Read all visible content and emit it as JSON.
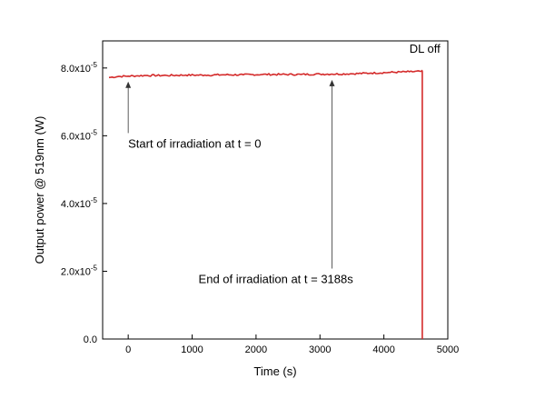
{
  "chart_data": {
    "type": "line",
    "title": "",
    "xlabel": "Time (s)",
    "ylabel": "Output power @ 519nm (W)",
    "xlim": [
      -400,
      5000
    ],
    "ylim": [
      0.0,
      8.8e-05
    ],
    "x_ticks": [
      {
        "value": 0,
        "label": "0"
      },
      {
        "value": 1000,
        "label": "1000"
      },
      {
        "value": 2000,
        "label": "2000"
      },
      {
        "value": 3000,
        "label": "3000"
      },
      {
        "value": 4000,
        "label": "4000"
      },
      {
        "value": 5000,
        "label": "5000"
      }
    ],
    "y_ticks": [
      {
        "value": 0.0,
        "label": "0.0",
        "exp": ""
      },
      {
        "value": 2e-05,
        "label": "2.0x10",
        "exp": "-5"
      },
      {
        "value": 4e-05,
        "label": "4.0x10",
        "exp": "-5"
      },
      {
        "value": 6e-05,
        "label": "6.0x10",
        "exp": "-5"
      },
      {
        "value": 8e-05,
        "label": "8.0x10",
        "exp": "-5"
      }
    ],
    "grid": false,
    "legend": "none",
    "series": [
      {
        "color": "#d42a2a",
        "x": [
          -300,
          -150,
          0,
          150,
          300,
          600,
          900,
          1200,
          1500,
          1800,
          2100,
          2400,
          2700,
          3000,
          3188,
          3500,
          3800,
          4100,
          4400,
          4590,
          4600,
          4600
        ],
        "y": [
          7.72e-05,
          7.75e-05,
          7.76e-05,
          7.77e-05,
          7.78e-05,
          7.78e-05,
          7.79e-05,
          7.79e-05,
          7.8e-05,
          7.8e-05,
          7.81e-05,
          7.81e-05,
          7.81e-05,
          7.82e-05,
          7.82e-05,
          7.83e-05,
          7.85e-05,
          7.87e-05,
          7.89e-05,
          7.9e-05,
          7.9e-05,
          0.0
        ]
      }
    ],
    "annotations": [
      {
        "text": "DL off",
        "x": 4400,
        "y": 8.45e-05
      },
      {
        "text": "Start of irradiation at t = 0",
        "x": 0,
        "y": 5.65e-05,
        "arrow_to": [
          0,
          7.6e-05
        ]
      },
      {
        "text": "End of irradiation at t = 3188s",
        "x": 1100,
        "y": 1.65e-05,
        "arrow_to": [
          3188,
          7.65e-05
        ]
      }
    ]
  }
}
